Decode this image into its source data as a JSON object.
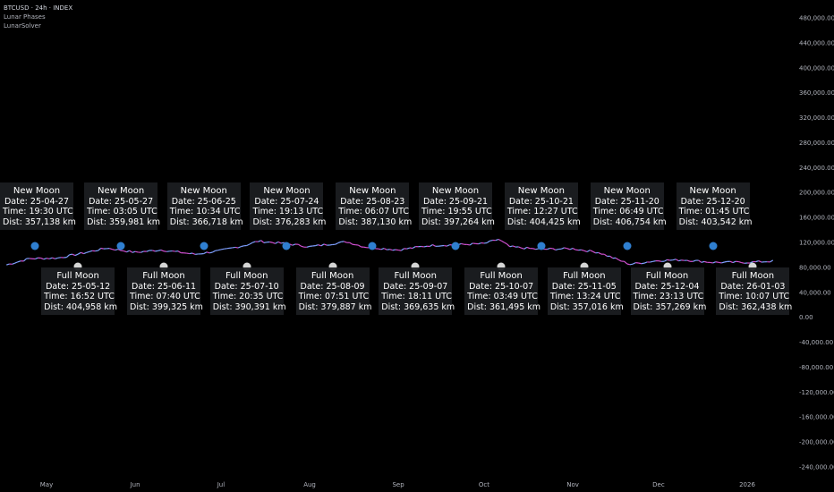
{
  "legend": {
    "symbol_line": "BTCUSD · 24h · INDEX",
    "indicator_1": "Lunar Phases",
    "indicator_2": "LunarSolver"
  },
  "colors": {
    "background": "#000000",
    "price_line_up": "#7fa0ff",
    "price_line_down": "#d04fd0",
    "new_moon_dot": "#2f7fd0",
    "full_moon_dot": "#d6d6d6",
    "label_bg": "#1c1e22",
    "axis_text": "#b2b5be"
  },
  "chart_data": {
    "type": "line",
    "title": "",
    "ylim": [
      -240000,
      500000
    ],
    "y_tick_labels": [
      "480,000.00",
      "440,000.00",
      "400,000.00",
      "360,000.00",
      "320,000.00",
      "280,000.00",
      "240,000.00",
      "200,000.00",
      "160,000.00",
      "120,000.00",
      "80,000.00",
      "40,000.00",
      "0.00",
      "-40,000.00",
      "-80,000.00",
      "-120,000.00",
      "-160,000.00",
      "-200,000.00",
      "-240,000.00"
    ],
    "y_tick_values": [
      480000,
      440000,
      400000,
      360000,
      320000,
      280000,
      240000,
      200000,
      160000,
      120000,
      80000,
      40000,
      0,
      -40000,
      -80000,
      -120000,
      -160000,
      -200000,
      -240000
    ],
    "x_tick_labels": [
      "May",
      "Jun",
      "Jul",
      "Aug",
      "Sep",
      "Oct",
      "Nov",
      "Dec",
      "2026"
    ],
    "x_tick_dates": [
      "2025-05-01",
      "2025-06-01",
      "2025-07-01",
      "2025-08-01",
      "2025-09-01",
      "2025-10-01",
      "2025-11-01",
      "2025-12-01",
      "2026-01-01"
    ],
    "grid": false,
    "series": [
      {
        "x": [
          "2025-04-17",
          "2025-04-25",
          "2025-05-05",
          "2025-05-15",
          "2025-05-22",
          "2025-06-01",
          "2025-06-10",
          "2025-06-22",
          "2025-07-01",
          "2025-07-10",
          "2025-07-14",
          "2025-07-24",
          "2025-08-01",
          "2025-08-14",
          "2025-08-20",
          "2025-09-01",
          "2025-09-12",
          "2025-09-20",
          "2025-10-01",
          "2025-10-06",
          "2025-10-10",
          "2025-10-20",
          "2025-11-01",
          "2025-11-10",
          "2025-11-21",
          "2025-12-01",
          "2025-12-10",
          "2025-12-20",
          "2026-01-01",
          "2026-01-10"
        ],
        "y": [
          84000,
          94000,
          95000,
          104000,
          111000,
          104000,
          108000,
          101000,
          107000,
          116000,
          122000,
          118000,
          113000,
          121000,
          113000,
          108000,
          115000,
          116000,
          118000,
          125000,
          113000,
          109000,
          110000,
          104000,
          85000,
          91000,
          92000,
          88000,
          88000,
          90000
        ]
      }
    ],
    "events": [
      {
        "phase": "New Moon",
        "date": "25-04-27",
        "time": "19:30 UTC",
        "dist": "357,138 km"
      },
      {
        "phase": "Full Moon",
        "date": "25-05-12",
        "time": "16:52 UTC",
        "dist": "404,958 km"
      },
      {
        "phase": "New Moon",
        "date": "25-05-27",
        "time": "03:05 UTC",
        "dist": "359,981 km"
      },
      {
        "phase": "Full Moon",
        "date": "25-06-11",
        "time": "07:40 UTC",
        "dist": "399,325 km"
      },
      {
        "phase": "New Moon",
        "date": "25-06-25",
        "time": "10:34 UTC",
        "dist": "366,718 km"
      },
      {
        "phase": "Full Moon",
        "date": "25-07-10",
        "time": "20:35 UTC",
        "dist": "390,391 km"
      },
      {
        "phase": "New Moon",
        "date": "25-07-24",
        "time": "19:13 UTC",
        "dist": "376,283 km"
      },
      {
        "phase": "Full Moon",
        "date": "25-08-09",
        "time": "07:51 UTC",
        "dist": "379,887 km"
      },
      {
        "phase": "New Moon",
        "date": "25-08-23",
        "time": "06:07 UTC",
        "dist": "387,130 km"
      },
      {
        "phase": "Full Moon",
        "date": "25-09-07",
        "time": "18:11 UTC",
        "dist": "369,635 km"
      },
      {
        "phase": "New Moon",
        "date": "25-09-21",
        "time": "19:55 UTC",
        "dist": "397,264 km"
      },
      {
        "phase": "Full Moon",
        "date": "25-10-07",
        "time": "03:49 UTC",
        "dist": "361,495 km"
      },
      {
        "phase": "New Moon",
        "date": "25-10-21",
        "time": "12:27 UTC",
        "dist": "404,425 km"
      },
      {
        "phase": "Full Moon",
        "date": "25-11-05",
        "time": "13:24 UTC",
        "dist": "357,016 km"
      },
      {
        "phase": "New Moon",
        "date": "25-11-20",
        "time": "06:49 UTC",
        "dist": "406,754 km"
      },
      {
        "phase": "Full Moon",
        "date": "25-12-04",
        "time": "23:13 UTC",
        "dist": "357,269 km"
      },
      {
        "phase": "New Moon",
        "date": "25-12-20",
        "time": "01:45 UTC",
        "dist": "403,542 km"
      },
      {
        "phase": "Full Moon",
        "date": "26-01-03",
        "time": "10:07 UTC",
        "dist": "362,438 km"
      }
    ],
    "label_prefixes": {
      "date": "Date: ",
      "time": "Time: ",
      "dist": "Dist: "
    }
  }
}
